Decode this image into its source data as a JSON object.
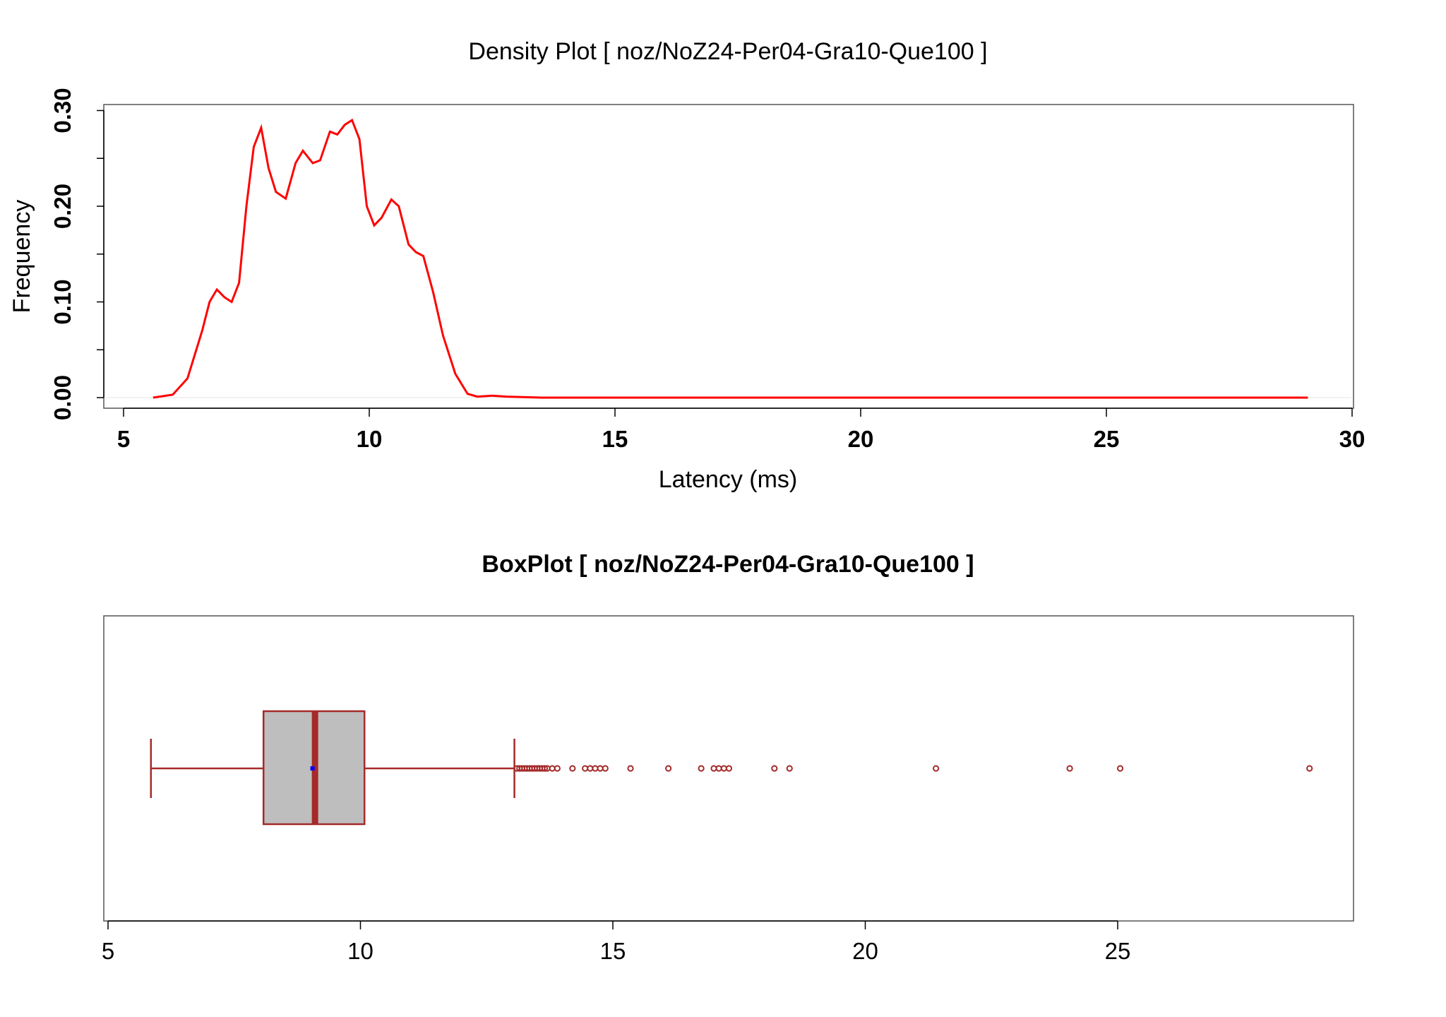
{
  "chart_data": [
    {
      "type": "line",
      "title": "Density Plot [ noz/NoZ24-Per04-Gra10-Que100 ]",
      "xlabel": "Latency (ms)",
      "ylabel": "Frequency",
      "xlim": [
        5,
        30
      ],
      "ylim": [
        0,
        0.3
      ],
      "x_ticks": [
        "5",
        "10",
        "15",
        "20",
        "25",
        "30"
      ],
      "y_ticks": [
        "0.00",
        "0.10",
        "0.20",
        "0.30"
      ],
      "line_color": "#ff0000",
      "series": [
        {
          "x": [
            5.6,
            6.0,
            6.3,
            6.6,
            6.75,
            6.9,
            7.05,
            7.2,
            7.35,
            7.5,
            7.65,
            7.8,
            7.95,
            8.1,
            8.3,
            8.5,
            8.65,
            8.85,
            9.0,
            9.2,
            9.35,
            9.5,
            9.65,
            9.8,
            9.95,
            10.1,
            10.25,
            10.45,
            10.6,
            10.8,
            10.95,
            11.1,
            11.3,
            11.5,
            11.75,
            12.0,
            12.2,
            12.5,
            12.8,
            13.5,
            15,
            20,
            25,
            29.1
          ],
          "y": [
            0.0,
            0.003,
            0.02,
            0.07,
            0.1,
            0.113,
            0.105,
            0.1,
            0.12,
            0.2,
            0.262,
            0.282,
            0.24,
            0.215,
            0.208,
            0.245,
            0.258,
            0.245,
            0.248,
            0.278,
            0.275,
            0.285,
            0.29,
            0.27,
            0.2,
            0.18,
            0.188,
            0.207,
            0.2,
            0.16,
            0.152,
            0.148,
            0.11,
            0.065,
            0.025,
            0.004,
            0.001,
            0.002,
            0.001,
            0.0,
            0.0,
            0.0,
            0.0,
            0.0
          ]
        }
      ]
    },
    {
      "type": "boxplot",
      "title": "BoxPlot [ noz/NoZ24-Per04-Gra10-Que100 ]",
      "xlim": [
        5,
        29.1
      ],
      "x_ticks": [
        "5",
        "10",
        "15",
        "20",
        "25"
      ],
      "min_whisker": 5.85,
      "q1": 8.08,
      "median": 9.1,
      "mean": 9.05,
      "q3": 10.08,
      "max_whisker": 13.05,
      "outliers": [
        13.1,
        13.15,
        13.2,
        13.25,
        13.3,
        13.35,
        13.4,
        13.45,
        13.5,
        13.55,
        13.6,
        13.65,
        13.7,
        13.8,
        13.9,
        14.2,
        14.45,
        14.55,
        14.65,
        14.75,
        14.85,
        15.35,
        16.1,
        16.75,
        17.0,
        17.1,
        17.2,
        17.3,
        18.2,
        18.5,
        21.4,
        24.05,
        25.05,
        28.8
      ],
      "box_fill": "#bebebe",
      "stroke_color": "#a52a2a",
      "mean_color": "#0000ff"
    }
  ]
}
